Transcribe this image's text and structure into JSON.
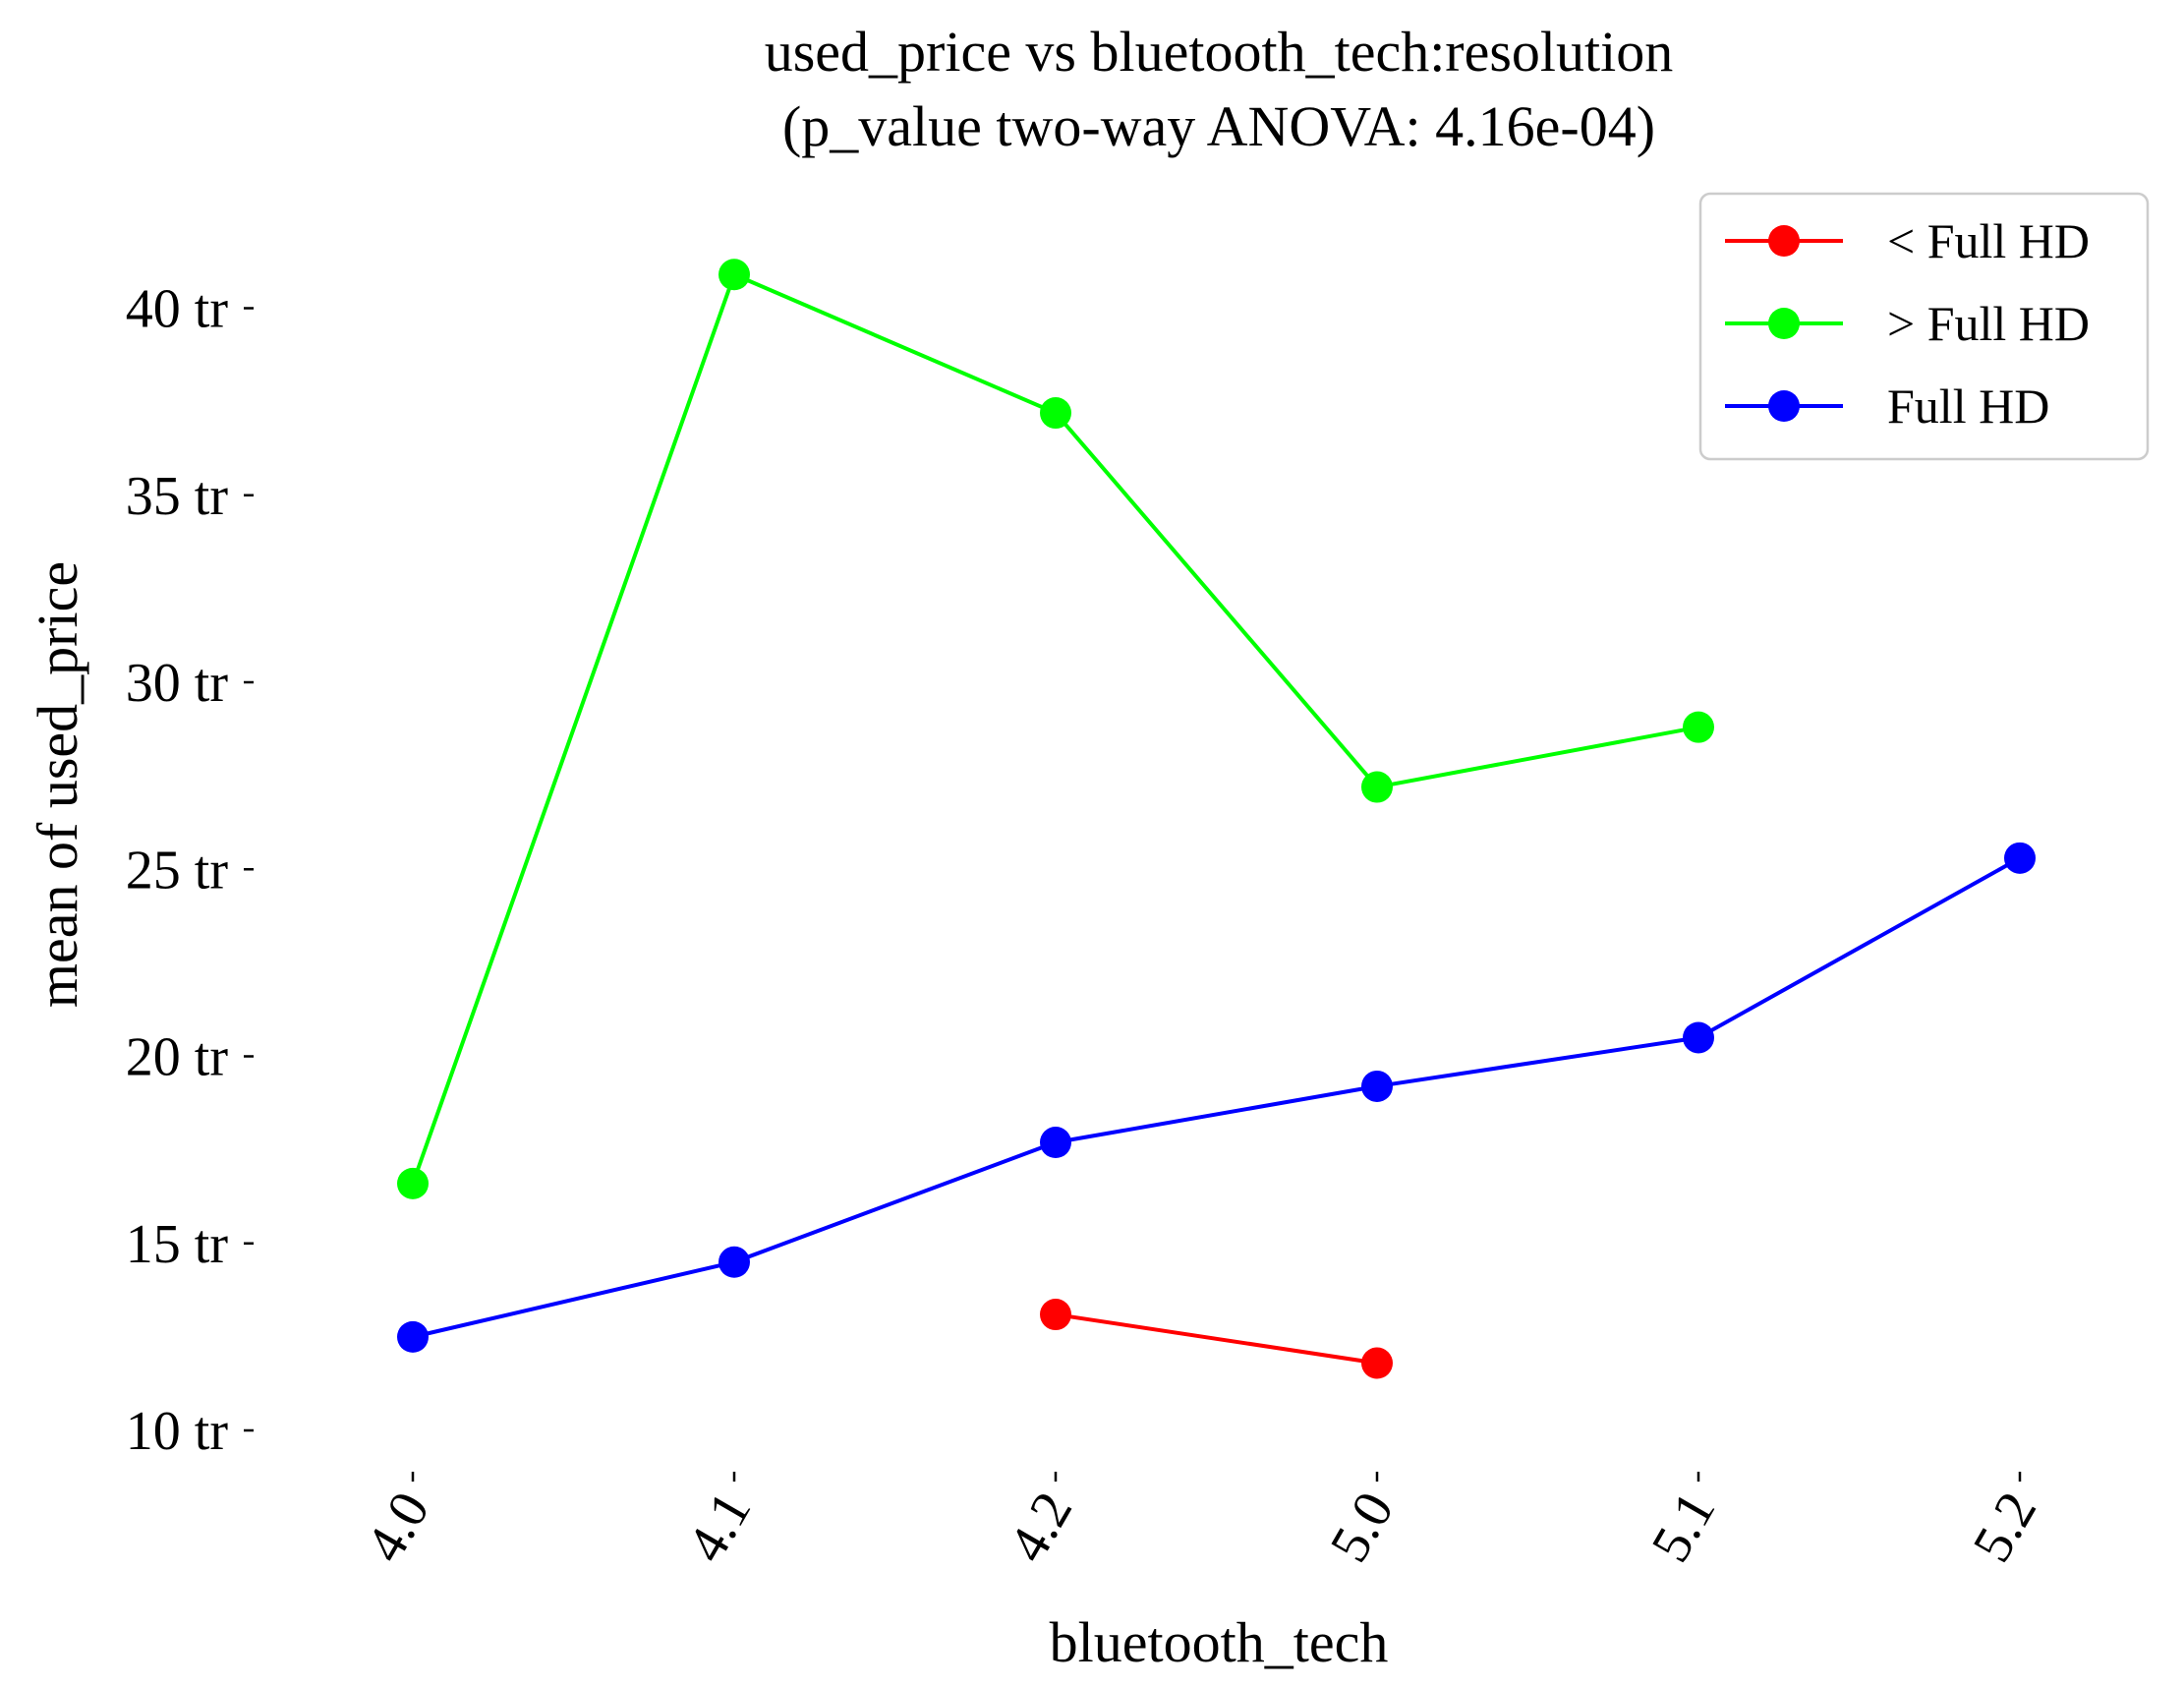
{
  "chart_data": {
    "type": "line",
    "title": [
      "used_price vs bluetooth_tech:resolution",
      "(p_value two-way ANOVA: 4.16e-04)"
    ],
    "xlabel": "bluetooth_tech",
    "ylabel": "mean of used_price",
    "categories": [
      "4.0",
      "4.1",
      "4.2",
      "5.0",
      "5.1",
      "5.2"
    ],
    "y_ticks": [
      10,
      15,
      20,
      25,
      30,
      35,
      40
    ],
    "y_tick_suffix": " tr",
    "ylim": [
      9.0,
      42.5
    ],
    "grid": false,
    "legend_position": "top-right",
    "series": [
      {
        "name": "< Full HD",
        "color": "#ff0000",
        "values": [
          null,
          null,
          13.1,
          11.8,
          null,
          null
        ]
      },
      {
        "name": "> Full HD",
        "color": "#00ff00",
        "values": [
          16.6,
          40.9,
          37.2,
          27.2,
          28.8,
          null
        ]
      },
      {
        "name": "Full HD",
        "color": "#0000ff",
        "values": [
          12.5,
          14.5,
          17.7,
          19.2,
          20.5,
          25.3
        ]
      }
    ]
  }
}
